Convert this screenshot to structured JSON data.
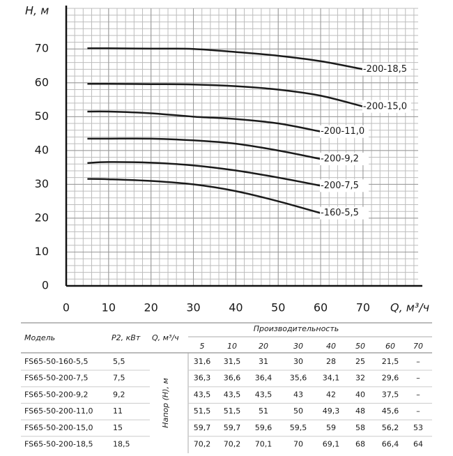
{
  "chart_data": {
    "type": "line",
    "y_label": "H, м",
    "x_label": "Q, м³/ч",
    "x": [
      5,
      10,
      20,
      30,
      40,
      50,
      60,
      70
    ],
    "series": [
      {
        "name": "-160-5,5",
        "color": "#1a1a1a",
        "values": [
          31.6,
          31.5,
          31,
          30,
          28,
          25,
          21.5,
          null
        ]
      },
      {
        "name": "-200-7,5",
        "color": "#1a1a1a",
        "values": [
          36.3,
          36.6,
          36.4,
          35.6,
          34.1,
          32,
          29.6,
          null
        ]
      },
      {
        "name": "-200-9,2",
        "color": "#1a1a1a",
        "values": [
          43.5,
          43.5,
          43.5,
          43,
          42,
          40,
          37.5,
          null
        ]
      },
      {
        "name": "-200-11,0",
        "color": "#1a1a1a",
        "values": [
          51.5,
          51.5,
          51,
          50,
          49.3,
          48,
          45.6,
          null
        ]
      },
      {
        "name": "-200-15,0",
        "color": "#1a1a1a",
        "values": [
          59.7,
          59.7,
          59.6,
          59.5,
          59,
          58,
          56.2,
          53
        ]
      },
      {
        "name": "-200-18,5",
        "color": "#1a1a1a",
        "values": [
          70.2,
          70.2,
          70.1,
          70,
          69.1,
          68,
          66.4,
          64
        ]
      }
    ],
    "xlim": [
      0,
      83
    ],
    "ylim": [
      0,
      82
    ],
    "xticks": [
      0,
      10,
      20,
      30,
      40,
      50,
      60,
      70
    ],
    "yticks": [
      0,
      10,
      20,
      30,
      40,
      50,
      60,
      70
    ],
    "grid": true
  },
  "table": {
    "headers": {
      "model": "Модель",
      "power": "P2, кВт",
      "flow": "Q, м³/ч",
      "group": "Производительность",
      "head": "Напор (H), м",
      "flows": [
        "5",
        "10",
        "20",
        "30",
        "40",
        "50",
        "60",
        "70"
      ]
    },
    "rows": [
      {
        "model": "FS65-50-160-5,5",
        "power": "5,5",
        "values": [
          "31,6",
          "31,5",
          "31",
          "30",
          "28",
          "25",
          "21,5",
          "–"
        ]
      },
      {
        "model": "FS65-50-200-7,5",
        "power": "7,5",
        "values": [
          "36,3",
          "36,6",
          "36,4",
          "35,6",
          "34,1",
          "32",
          "29,6",
          "–"
        ]
      },
      {
        "model": "FS65-50-200-9,2",
        "power": "9,2",
        "values": [
          "43,5",
          "43,5",
          "43,5",
          "43",
          "42",
          "40",
          "37,5",
          "–"
        ]
      },
      {
        "model": "FS65-50-200-11,0",
        "power": "11",
        "values": [
          "51,5",
          "51,5",
          "51",
          "50",
          "49,3",
          "48",
          "45,6",
          "–"
        ]
      },
      {
        "model": "FS65-50-200-15,0",
        "power": "15",
        "values": [
          "59,7",
          "59,7",
          "59,6",
          "59,5",
          "59",
          "58",
          "56,2",
          "53"
        ]
      },
      {
        "model": "FS65-50-200-18,5",
        "power": "18,5",
        "values": [
          "70,2",
          "70,2",
          "70,1",
          "70",
          "69,1",
          "68",
          "66,4",
          "64"
        ]
      }
    ]
  }
}
